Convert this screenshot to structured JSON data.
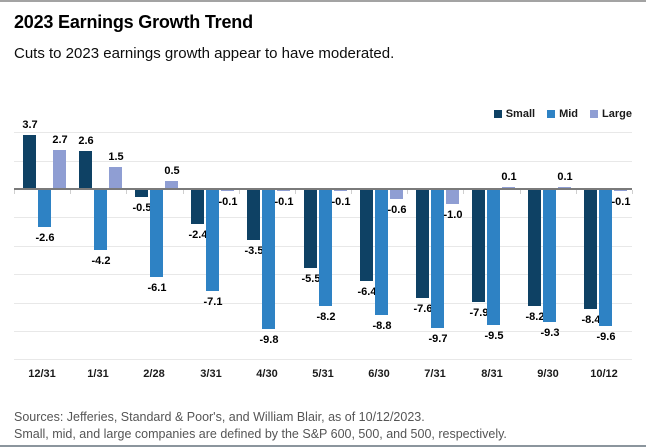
{
  "header": {
    "title": "2023 Earnings Growth Trend",
    "subtitle": "Cuts to 2023 earnings growth appear to have moderated."
  },
  "chart_data": {
    "type": "bar",
    "title": "2023 Earnings Growth Trend",
    "subtitle": "Cuts to 2023 earnings growth appear to have moderated.",
    "categories": [
      "12/31",
      "1/31",
      "2/28",
      "3/31",
      "4/30",
      "5/31",
      "6/30",
      "7/31",
      "8/31",
      "9/30",
      "10/12"
    ],
    "series": [
      {
        "name": "Small",
        "color": "#0e4164",
        "values": [
          3.7,
          2.6,
          -0.5,
          -2.4,
          -3.5,
          -5.5,
          -6.4,
          -7.6,
          -7.9,
          -8.2,
          -8.4
        ]
      },
      {
        "name": "Mid",
        "color": "#2e82c4",
        "values": [
          -2.6,
          -4.2,
          -6.1,
          -7.1,
          -9.8,
          -8.2,
          -8.8,
          -9.7,
          -9.5,
          -9.3,
          -9.6
        ]
      },
      {
        "name": "Large",
        "color": "#8f9ed3",
        "values": [
          2.7,
          1.5,
          0.5,
          -0.1,
          -0.1,
          -0.1,
          -0.6,
          -1.0,
          0.1,
          0.1,
          -0.1
        ]
      }
    ],
    "xlabel": "",
    "ylabel": "",
    "ylim": [
      -12,
      4
    ],
    "gridline_step": 2,
    "grid": true,
    "value_labels_decimals": 1,
    "legend_position": "top-right",
    "colors": {
      "gridline": "#e8e8e8",
      "axis_line": "#7a7a7a",
      "tick": "#cfcfcf",
      "label_text": "#000000"
    }
  },
  "footer": {
    "line1": "Sources: Jefferies, Standard & Poor's, and William Blair, as of 10/12/2023.",
    "line2": "Small, mid, and large companies are defined by the S&P 600, 500, and 500, respectively."
  }
}
